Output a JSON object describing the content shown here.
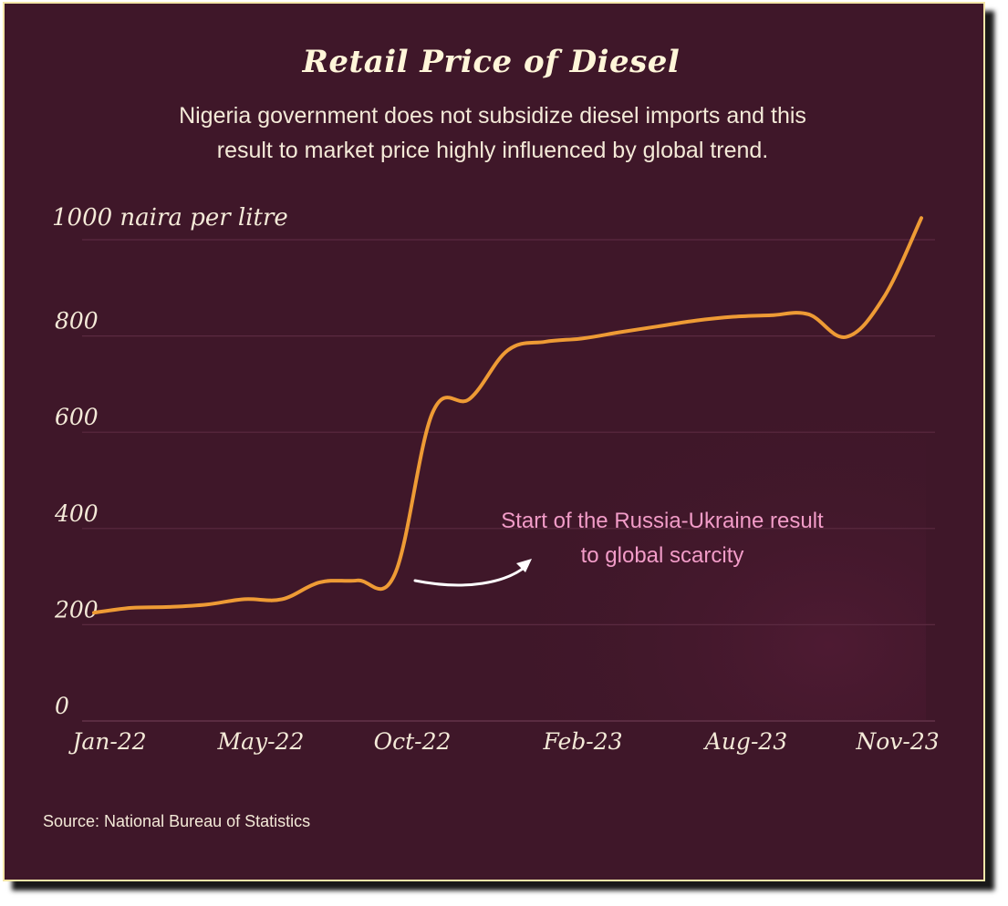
{
  "title": "Retail Price of Diesel",
  "subtitle_line1": "Nigeria government does not subsidize diesel imports and this",
  "subtitle_line2": "result to market price highly influenced by global trend.",
  "source": "Source: National Bureau of Statistics",
  "colors": {
    "background": "#3f1729",
    "line": "#ee9b35",
    "annotation": "#f29cc8",
    "border": "#f3e6a8"
  },
  "chart_data": {
    "type": "line",
    "title": "Retail Price of Diesel",
    "ylabel": "1000 naira per litre",
    "ylim": [
      0,
      1000
    ],
    "yticks": [
      0,
      200,
      400,
      600,
      800,
      1000
    ],
    "ytick_labels": [
      "0",
      "200",
      "400",
      "600",
      "800",
      "1000 naira per litre"
    ],
    "xtick_labels": [
      "Jan-22",
      "May-22",
      "Oct-22",
      "Feb-23",
      "Aug-23",
      "Nov-23"
    ],
    "grid": true,
    "x": [
      "Jan-22",
      "Feb-22",
      "Mar-22",
      "Apr-22",
      "May-22",
      "Jun-22",
      "Jul-22",
      "Aug-22",
      "Sep-22",
      "Oct-22",
      "Nov-22",
      "Dec-22",
      "Jan-23",
      "Feb-23",
      "Mar-23",
      "Apr-23",
      "May-23",
      "Jun-23",
      "Jul-23",
      "Aug-23",
      "Sep-23",
      "Oct-23",
      "Nov-23"
    ],
    "series": [
      {
        "values": [
          225,
          235,
          237,
          242,
          253,
          253,
          288,
          292,
          305,
          640,
          670,
          770,
          788,
          795,
          808,
          820,
          832,
          840,
          843,
          845,
          798,
          880,
          1045
        ]
      }
    ],
    "annotation": {
      "text_line1": "Start of the Russia-Ukraine result",
      "text_line2": "to global scarcity"
    }
  }
}
